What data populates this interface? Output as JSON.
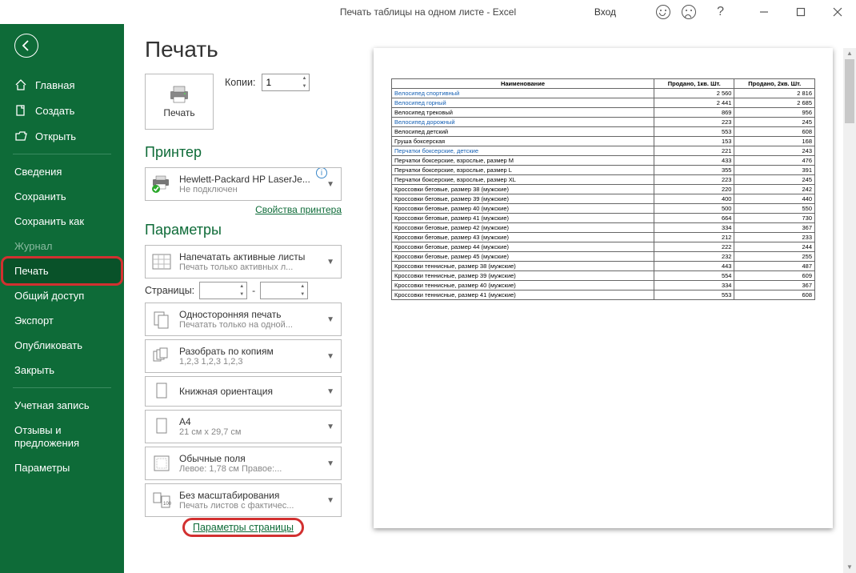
{
  "titlebar": {
    "title": "Печать таблицы на одном листе  -  Excel",
    "login": "Вход",
    "help": "?"
  },
  "sidebar": {
    "items": [
      {
        "label": "Главная",
        "icon": "home"
      },
      {
        "label": "Создать",
        "icon": "new"
      },
      {
        "label": "Открыть",
        "icon": "open"
      },
      {
        "label": "Сведения"
      },
      {
        "label": "Сохранить"
      },
      {
        "label": "Сохранить как"
      },
      {
        "label": "Журнал",
        "dim": true
      },
      {
        "label": "Печать",
        "active": true
      },
      {
        "label": "Общий доступ"
      },
      {
        "label": "Экспорт"
      },
      {
        "label": "Опубликовать"
      },
      {
        "label": "Закрыть"
      },
      {
        "label": "Учетная запись"
      },
      {
        "label": "Отзывы и предложения"
      },
      {
        "label": "Параметры"
      }
    ]
  },
  "print": {
    "heading": "Печать",
    "print_btn": "Печать",
    "copies_label": "Копии:",
    "copies_value": "1",
    "printer_heading": "Принтер",
    "printer_name": "Hewlett-Packard HP LaserJe...",
    "printer_status": "Не подключен",
    "printer_props": "Свойства принтера",
    "params_heading": "Параметры",
    "opt_sheets_l1": "Напечатать активные листы",
    "opt_sheets_l2": "Печать только активных л...",
    "pages_label": "Страницы:",
    "pages_from": "",
    "pages_to": "",
    "opt_sided_l1": "Односторонняя печать",
    "opt_sided_l2": "Печатать только на одной...",
    "opt_collate_l1": "Разобрать по копиям",
    "opt_collate_l2": "1,2,3    1,2,3    1,2,3",
    "opt_orient_l1": "Книжная ориентация",
    "opt_orient_l2": "",
    "opt_paper_l1": "A4",
    "opt_paper_l2": "21 см x 29,7 см",
    "opt_margins_l1": "Обычные поля",
    "opt_margins_l2": "Левое:   1,78 см    Правое:...",
    "opt_scale_l1": "Без масштабирования",
    "opt_scale_l2": "Печать листов с фактичес...",
    "page_setup": "Параметры страницы"
  },
  "preview_table": {
    "headers": [
      "Наименование",
      "Продано, 1кв. Шт.",
      "Продано, 2кв. Шт."
    ],
    "col_widths": [
      "62%",
      "19%",
      "19%"
    ],
    "rows": [
      {
        "name": "Велосипед спортивный",
        "q1": "2 560",
        "q2": "2 816",
        "link": true
      },
      {
        "name": "Велосипед горный",
        "q1": "2 441",
        "q2": "2 685",
        "link": true
      },
      {
        "name": "Велосипед трековый",
        "q1": "869",
        "q2": "956"
      },
      {
        "name": "Велосипед дорожный",
        "q1": "223",
        "q2": "245",
        "link": true
      },
      {
        "name": "Велосипед детский",
        "q1": "553",
        "q2": "608"
      },
      {
        "name": "Груша боксерская",
        "q1": "153",
        "q2": "168"
      },
      {
        "name": "Перчатки боксерские, детские",
        "q1": "221",
        "q2": "243",
        "link": true
      },
      {
        "name": "Перчатки боксерские, взрослые, размер M",
        "q1": "433",
        "q2": "476"
      },
      {
        "name": "Перчатки боксерские, взрослые, размер L",
        "q1": "355",
        "q2": "391"
      },
      {
        "name": "Перчатки боксерские, взрослые, размер XL",
        "q1": "223",
        "q2": "245"
      },
      {
        "name": "Кроссовки беговые, размер 38 (мужские)",
        "q1": "220",
        "q2": "242"
      },
      {
        "name": "Кроссовки беговые, размер 39 (мужские)",
        "q1": "400",
        "q2": "440"
      },
      {
        "name": "Кроссовки беговые, размер 40 (мужские)",
        "q1": "500",
        "q2": "550"
      },
      {
        "name": "Кроссовки беговые, размер 41 (мужские)",
        "q1": "664",
        "q2": "730"
      },
      {
        "name": "Кроссовки беговые, размер 42 (мужские)",
        "q1": "334",
        "q2": "367"
      },
      {
        "name": "Кроссовки беговые, размер 43 (мужские)",
        "q1": "212",
        "q2": "233"
      },
      {
        "name": "Кроссовки беговые, размер 44 (мужские)",
        "q1": "222",
        "q2": "244"
      },
      {
        "name": "Кроссовки беговые, размер 45 (мужские)",
        "q1": "232",
        "q2": "255"
      },
      {
        "name": "Кроссовки теннисные, размер 38 (мужские)",
        "q1": "443",
        "q2": "487"
      },
      {
        "name": "Кроссовки теннисные, размер 39 (мужские)",
        "q1": "554",
        "q2": "609"
      },
      {
        "name": "Кроссовки теннисные, размер 40 (мужские)",
        "q1": "334",
        "q2": "367"
      },
      {
        "name": "Кроссовки теннисные, размер 41 (мужские)",
        "q1": "553",
        "q2": "608"
      }
    ]
  }
}
